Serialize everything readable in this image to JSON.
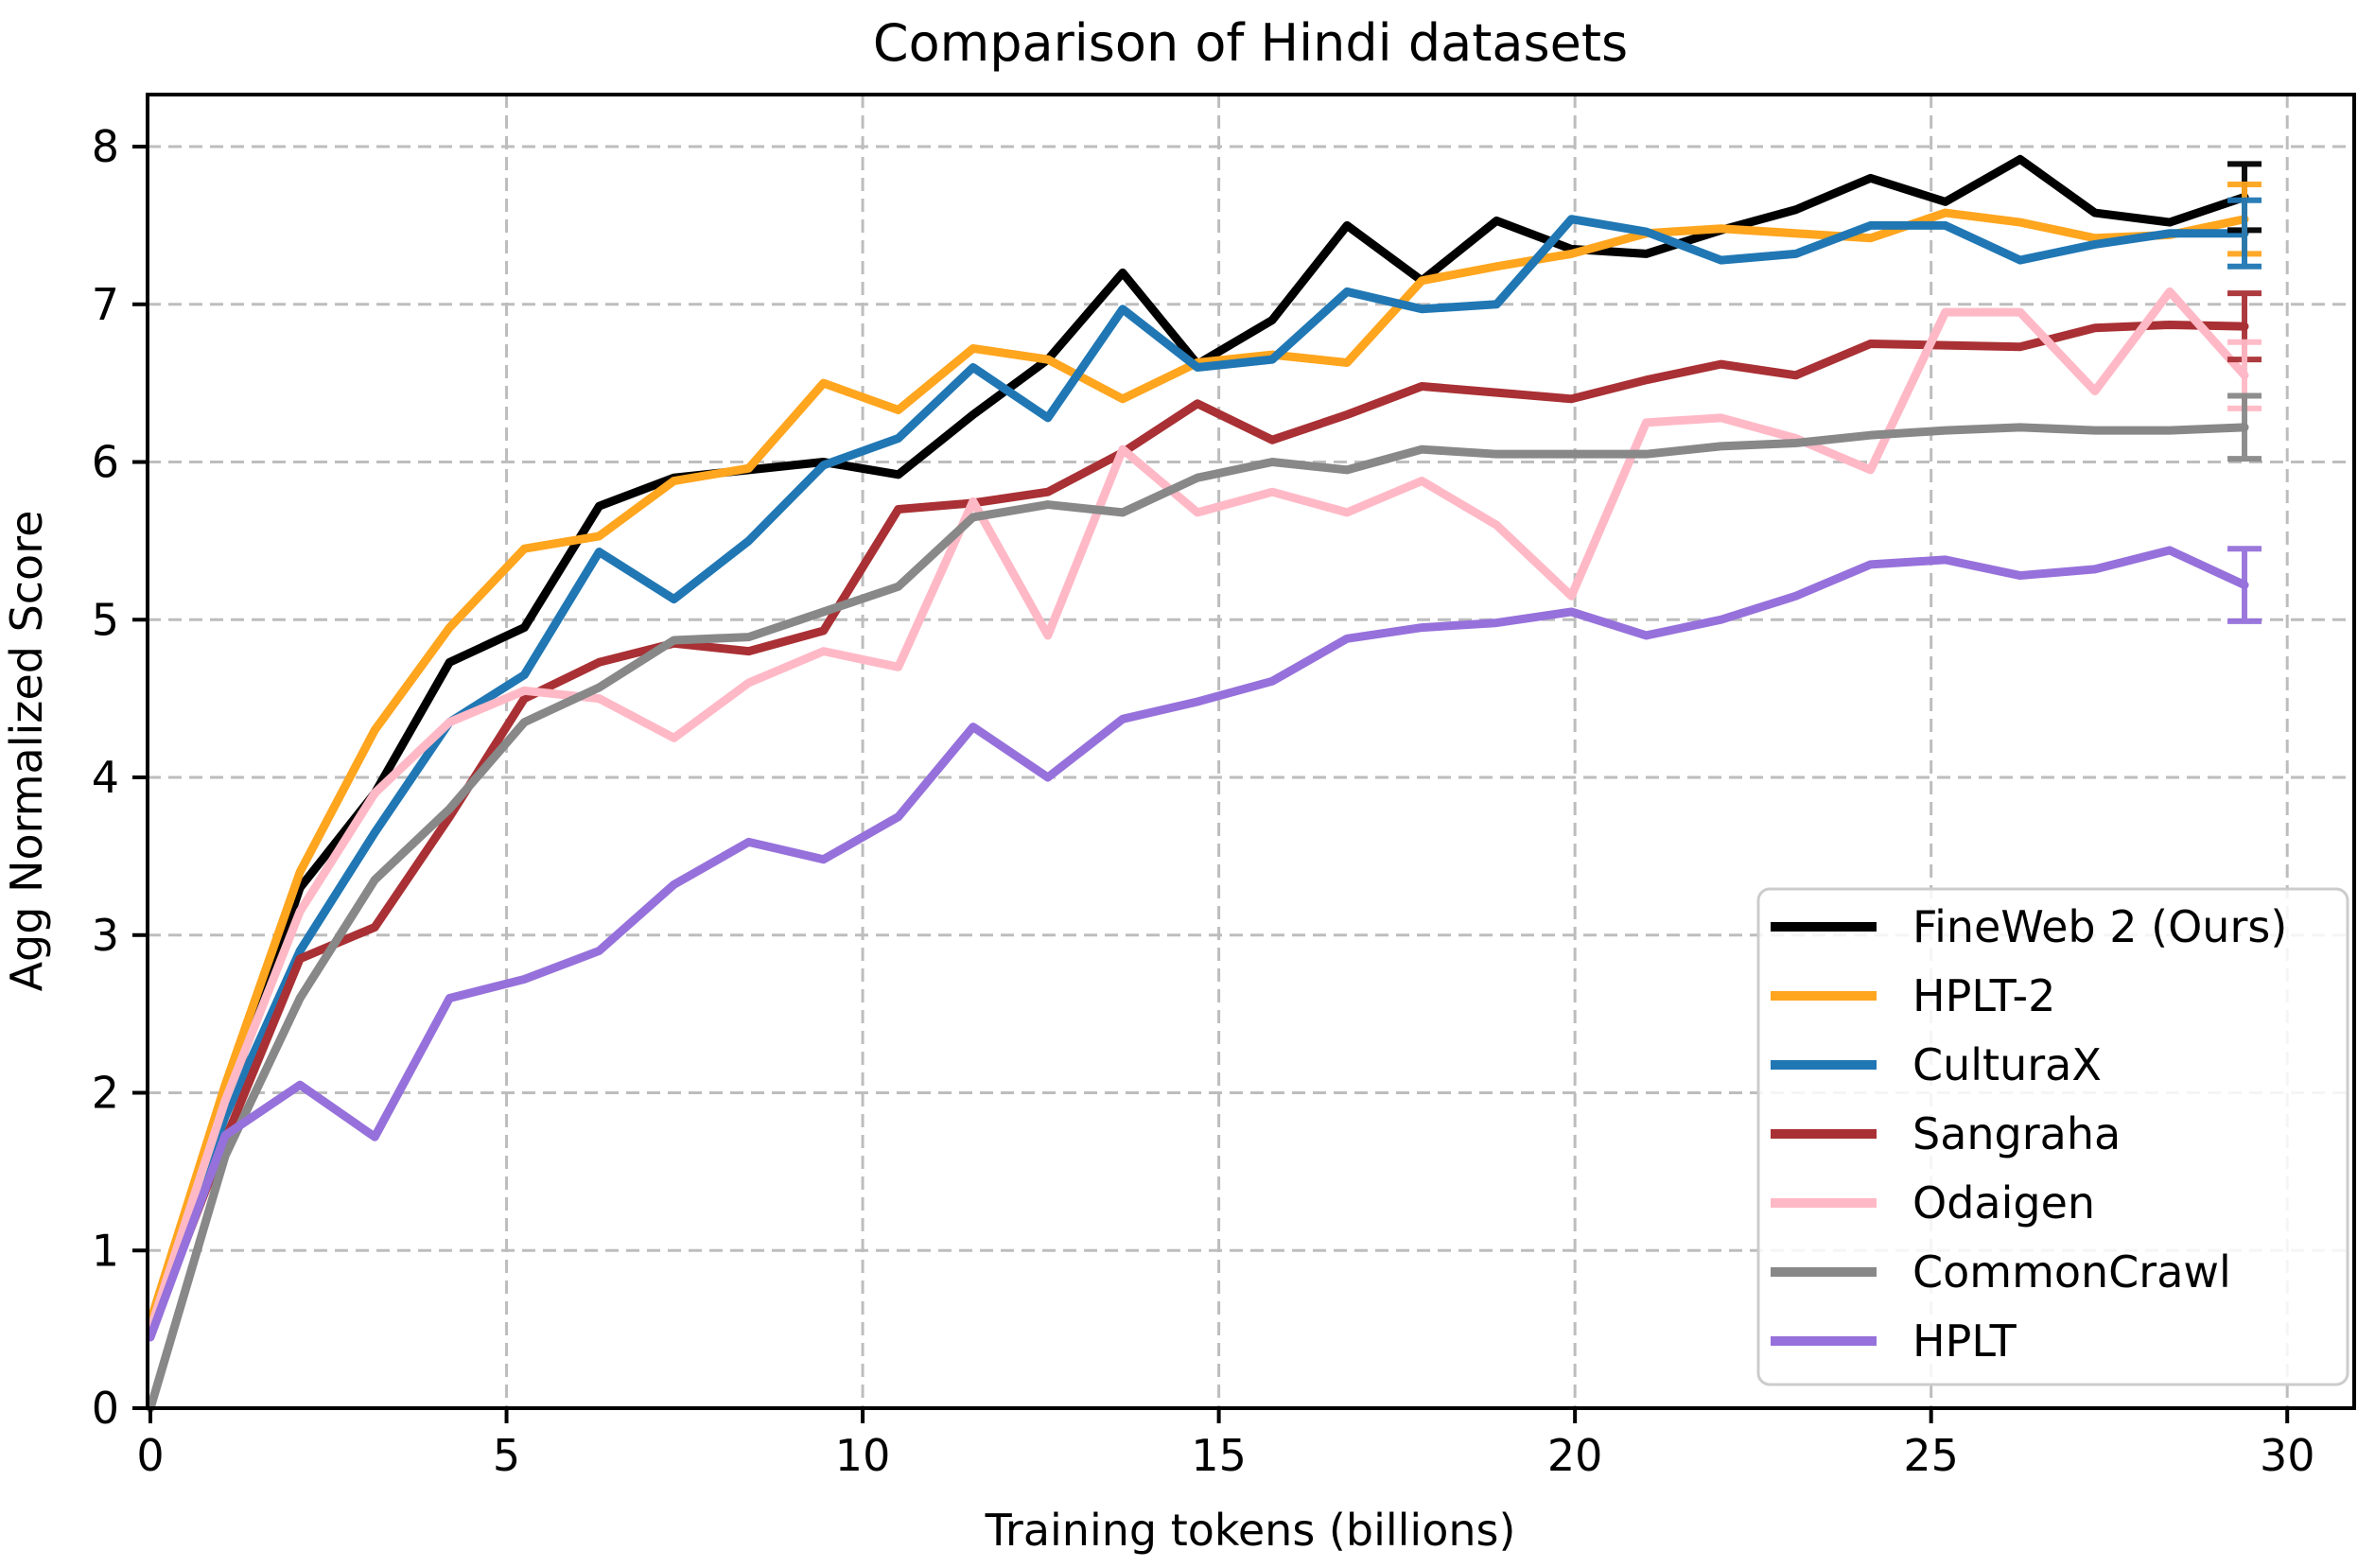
{
  "chart_data": {
    "type": "line",
    "title": "Comparison of Hindi datasets",
    "xlabel": "Training tokens (billions)",
    "ylabel": "Agg Normalized Score",
    "xlim": [
      -0.04,
      30.94
    ],
    "ylim": [
      0,
      8.33
    ],
    "xticks": [
      0,
      5,
      10,
      15,
      20,
      25,
      30
    ],
    "yticks": [
      0,
      1,
      2,
      3,
      4,
      5,
      6,
      7,
      8
    ],
    "grid": true,
    "grid_color": "#bdbdbd",
    "legend_position": "lower right",
    "x": [
      0,
      1.05,
      2.1,
      3.15,
      4.2,
      5.25,
      6.3,
      7.35,
      8.4,
      9.45,
      10.5,
      11.55,
      12.6,
      13.65,
      14.7,
      15.75,
      16.8,
      17.85,
      18.9,
      19.95,
      21.0,
      22.05,
      23.1,
      24.15,
      25.2,
      26.25,
      27.3,
      28.35,
      29.4
    ],
    "series": [
      {
        "name": "FineWeb 2 (Ours)",
        "color": "#000000",
        "linewidth": 9,
        "values": [
          0.5,
          1.9,
          3.3,
          3.9,
          4.73,
          4.95,
          5.72,
          5.9,
          5.95,
          6.0,
          5.92,
          6.3,
          6.65,
          7.2,
          6.62,
          6.9,
          7.5,
          7.15,
          7.53,
          7.35,
          7.32,
          7.47,
          7.6,
          7.8,
          7.65,
          7.92,
          7.58,
          7.52,
          7.68
        ],
        "final_error": 0.21
      },
      {
        "name": "HPLT-2",
        "color": "#FFA51E",
        "linewidth": 9,
        "values": [
          0.55,
          2.05,
          3.4,
          4.3,
          4.95,
          5.45,
          5.53,
          5.88,
          5.96,
          6.5,
          6.33,
          6.72,
          6.65,
          6.4,
          6.63,
          6.68,
          6.63,
          7.15,
          7.24,
          7.32,
          7.45,
          7.48,
          7.45,
          7.42,
          7.58,
          7.52,
          7.42,
          7.44,
          7.54
        ],
        "final_error": 0.22
      },
      {
        "name": "CulturaX",
        "color": "#2077B4",
        "linewidth": 9,
        "values": [
          0.5,
          1.85,
          2.9,
          3.65,
          4.35,
          4.65,
          5.43,
          5.13,
          5.5,
          5.98,
          6.15,
          6.6,
          6.28,
          6.97,
          6.6,
          6.65,
          7.08,
          6.97,
          7.0,
          7.54,
          7.46,
          7.28,
          7.32,
          7.5,
          7.5,
          7.28,
          7.38,
          7.45,
          7.45
        ],
        "final_error": 0.21
      },
      {
        "name": "Sangraha",
        "color": "#A93034",
        "linewidth": 9,
        "values": [
          0.48,
          1.7,
          2.85,
          3.05,
          3.75,
          4.5,
          4.73,
          4.85,
          4.8,
          4.93,
          5.7,
          5.74,
          5.81,
          6.06,
          6.37,
          6.14,
          6.3,
          6.48,
          6.44,
          6.4,
          6.52,
          6.62,
          6.55,
          6.75,
          6.74,
          6.73,
          6.85,
          6.87,
          6.86
        ],
        "final_error": 0.21
      },
      {
        "name": "Odaigen",
        "color": "#FFB9C6",
        "linewidth": 9,
        "values": [
          0.5,
          1.95,
          3.15,
          3.9,
          4.35,
          4.55,
          4.5,
          4.25,
          4.6,
          4.8,
          4.7,
          5.75,
          4.9,
          6.08,
          5.68,
          5.81,
          5.68,
          5.88,
          5.6,
          5.15,
          6.25,
          6.28,
          6.15,
          5.95,
          6.95,
          6.95,
          6.45,
          7.08,
          6.55
        ],
        "final_error": 0.21
      },
      {
        "name": "CommonCrawl",
        "color": "#888888",
        "linewidth": 9,
        "values": [
          0.0,
          1.6,
          2.6,
          3.35,
          3.8,
          4.35,
          4.57,
          4.87,
          4.89,
          5.05,
          5.21,
          5.65,
          5.73,
          5.68,
          5.9,
          6.0,
          5.95,
          6.08,
          6.05,
          6.05,
          6.05,
          6.1,
          6.12,
          6.17,
          6.2,
          6.22,
          6.2,
          6.2,
          6.22
        ],
        "final_error": 0.2
      },
      {
        "name": "HPLT",
        "color": "#9671DB",
        "linewidth": 9,
        "values": [
          0.45,
          1.73,
          2.05,
          1.72,
          2.6,
          2.72,
          2.9,
          3.32,
          3.59,
          3.48,
          3.75,
          4.32,
          4.0,
          4.37,
          4.48,
          4.61,
          4.88,
          4.95,
          4.98,
          5.05,
          4.9,
          5.0,
          5.15,
          5.35,
          5.38,
          5.28,
          5.32,
          5.44,
          5.22
        ],
        "final_error": 0.23
      }
    ]
  }
}
